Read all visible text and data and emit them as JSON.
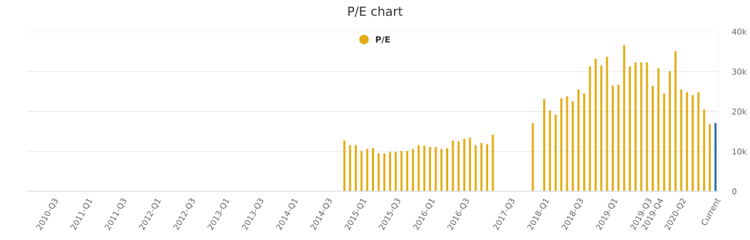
{
  "chart_data": {
    "type": "bar",
    "title": "P/E chart",
    "categories": [
      null,
      null,
      null,
      null,
      "2010-Q3",
      null,
      null,
      null,
      null,
      null,
      "2011-Q1",
      null,
      null,
      null,
      null,
      null,
      "2011-Q3",
      null,
      null,
      null,
      null,
      null,
      "2012-Q1",
      null,
      null,
      null,
      null,
      null,
      "2012-Q3",
      null,
      null,
      null,
      null,
      null,
      "2013-Q1",
      null,
      null,
      null,
      null,
      null,
      "2013-Q3",
      null,
      null,
      null,
      null,
      null,
      "2014-Q1",
      null,
      null,
      null,
      null,
      null,
      "2014-Q3",
      null,
      null,
      null,
      null,
      null,
      "2015-Q1",
      null,
      null,
      null,
      null,
      null,
      "2015-Q3",
      null,
      null,
      null,
      null,
      null,
      "2016-Q1",
      null,
      null,
      null,
      null,
      null,
      "2016-Q3",
      null,
      null,
      null,
      null,
      null,
      null,
      null,
      "2017-Q3",
      null,
      null,
      null,
      null,
      null,
      "2018-Q1",
      null,
      null,
      null,
      null,
      null,
      "2018-Q3",
      null,
      null,
      null,
      null,
      null,
      "2019-Q1",
      null,
      null,
      null,
      null,
      null,
      "2019-Q3",
      null,
      "2019-Q4",
      null,
      null,
      null,
      "2020-Q2",
      null,
      null,
      null,
      null,
      null,
      "Current"
    ],
    "series": [
      {
        "name": "P/E",
        "color": "#e3ac12",
        "values": [
          null,
          null,
          null,
          null,
          null,
          null,
          null,
          null,
          null,
          null,
          null,
          null,
          null,
          null,
          null,
          null,
          null,
          null,
          null,
          null,
          null,
          null,
          null,
          null,
          null,
          null,
          null,
          null,
          null,
          null,
          null,
          null,
          null,
          null,
          null,
          null,
          null,
          null,
          null,
          null,
          null,
          null,
          null,
          null,
          null,
          null,
          null,
          null,
          null,
          null,
          null,
          null,
          null,
          null,
          null,
          12700,
          11600,
          11600,
          10100,
          10600,
          10800,
          9500,
          9500,
          9900,
          9900,
          10100,
          10100,
          10600,
          11600,
          11400,
          11100,
          11100,
          10600,
          10800,
          12700,
          12500,
          13200,
          13400,
          11600,
          12100,
          11800,
          14200,
          null,
          null,
          null,
          null,
          null,
          null,
          17100,
          null,
          23100,
          20200,
          19200,
          23300,
          23800,
          22600,
          25500,
          24500,
          31300,
          33200,
          31500,
          33700,
          26500,
          26700,
          36600,
          31300,
          32300,
          32300,
          32300,
          26400,
          30800,
          24500,
          30100,
          35100,
          25500,
          24800,
          24100,
          24800,
          20500,
          16800,
          17100
        ],
        "colors": [
          "#e3ac12",
          "#e3ac12",
          "#e3ac12",
          "#e3ac12",
          "#e3ac12",
          "#e3ac12",
          "#e3ac12",
          "#e3ac12",
          "#e3ac12",
          "#e3ac12",
          "#e3ac12",
          "#e3ac12",
          "#e3ac12",
          "#e3ac12",
          "#e3ac12",
          "#e3ac12",
          "#e3ac12",
          "#e3ac12",
          "#e3ac12",
          "#e3ac12",
          "#e3ac12",
          "#e3ac12",
          "#e3ac12",
          "#e3ac12",
          "#e3ac12",
          "#e3ac12",
          "#e3ac12",
          "#e3ac12",
          "#e3ac12",
          "#e3ac12",
          "#e3ac12",
          "#e3ac12",
          "#e3ac12",
          "#e3ac12",
          "#e3ac12",
          "#e3ac12",
          "#e3ac12",
          "#e3ac12",
          "#e3ac12",
          "#e3ac12",
          "#e3ac12",
          "#e3ac12",
          "#e3ac12",
          "#e3ac12",
          "#e3ac12",
          "#e3ac12",
          "#e3ac12",
          "#e3ac12",
          "#e3ac12",
          "#e3ac12",
          "#e3ac12",
          "#e3ac12",
          "#e3ac12",
          "#e3ac12",
          "#e3ac12",
          "#e3ac12",
          "#e3ac12",
          "#e3ac12",
          "#e3ac12",
          "#e3ac12",
          "#e3ac12",
          "#e3ac12",
          "#e3ac12",
          "#e3ac12",
          "#e3ac12",
          "#e3ac12",
          "#e3ac12",
          "#e3ac12",
          "#e3ac12",
          "#e3ac12",
          "#e3ac12",
          "#e3ac12",
          "#e3ac12",
          "#e3ac12",
          "#e3ac12",
          "#e3ac12",
          "#e3ac12",
          "#e3ac12",
          "#e3ac12",
          "#e3ac12",
          "#e3ac12",
          "#e3ac12",
          "#e3ac12",
          "#e3ac12",
          "#e3ac12",
          "#e3ac12",
          "#e3ac12",
          "#e3ac12",
          "#e3ac12",
          "#e3ac12",
          "#e3ac12",
          "#e3ac12",
          "#e3ac12",
          "#e3ac12",
          "#e3ac12",
          "#e3ac12",
          "#e3ac12",
          "#e3ac12",
          "#e3ac12",
          "#e3ac12",
          "#e3ac12",
          "#e3ac12",
          "#e3ac12",
          "#e3ac12",
          "#e3ac12",
          "#e3ac12",
          "#e3ac12",
          "#e3ac12",
          "#e3ac12",
          "#e3ac12",
          "#e3ac12",
          "#e3ac12",
          "#e3ac12",
          "#e3ac12",
          "#e3ac12",
          "#e3ac12",
          "#e3ac12",
          "#e3ac12",
          "#e3ac12",
          "#e3ac12",
          "#1f6fa5"
        ]
      }
    ],
    "ylim": [
      0,
      40000
    ],
    "yticks": [
      0,
      {
        "value": 10000,
        "label": "10k"
      },
      {
        "value": 20000,
        "label": "20k"
      },
      {
        "value": 30000,
        "label": "30k"
      },
      {
        "value": 40000,
        "label": "40k"
      }
    ],
    "grid": "y",
    "legend": "top"
  }
}
